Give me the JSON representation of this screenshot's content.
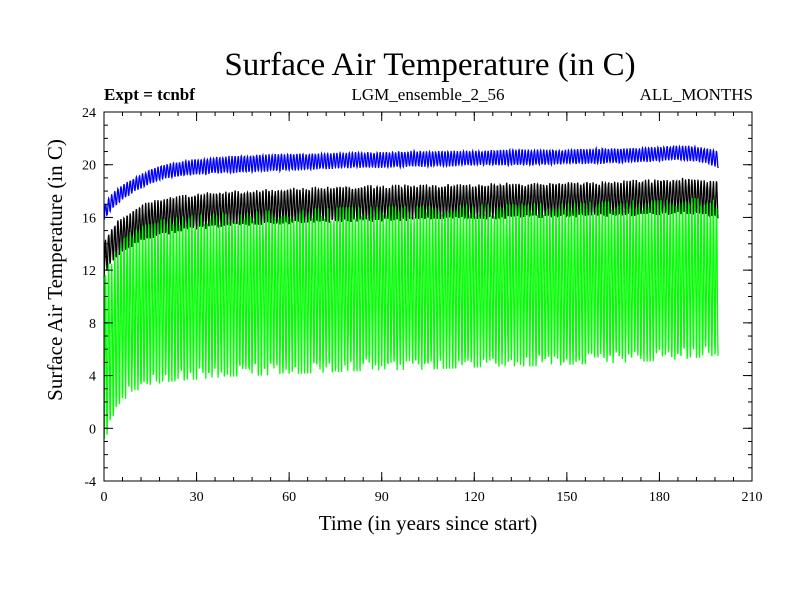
{
  "chart_data": {
    "type": "line",
    "title": "Surface Air Temperature (in C)",
    "subtitle_left": "Expt = tcnbf",
    "subtitle_center": "LGM_ensemble_2_56",
    "subtitle_right": "ALL_MONTHS",
    "xlabel": "Time (in years since start)",
    "ylabel": "Surface Air Temperature (in C)",
    "xlim": [
      0,
      210
    ],
    "ylim": [
      -4,
      24
    ],
    "x_ticks": [
      "0",
      "30",
      "60",
      "90",
      "120",
      "150",
      "180",
      "210"
    ],
    "y_ticks": [
      "-4",
      "0",
      "4",
      "8",
      "12",
      "16",
      "20",
      "24"
    ],
    "x_minor_step": 6,
    "y_minor_step": 1,
    "x_range_data": [
      0,
      199
    ],
    "series": [
      {
        "name": "blue series",
        "color": "#0000ff",
        "envelope_x": [
          0,
          2,
          5,
          10,
          15,
          20,
          30,
          40,
          50,
          60,
          70,
          80,
          90,
          100,
          110,
          120,
          130,
          140,
          150,
          160,
          170,
          180,
          185,
          190,
          195,
          199
        ],
        "envelope_low": [
          15.8,
          16.5,
          17.2,
          18.0,
          18.6,
          19.0,
          19.3,
          19.4,
          19.5,
          19.6,
          19.7,
          19.8,
          19.8,
          19.9,
          19.9,
          20.0,
          20.0,
          20.0,
          20.1,
          20.1,
          20.2,
          20.3,
          20.4,
          20.3,
          20.2,
          19.8
        ],
        "envelope_high": [
          16.8,
          17.6,
          18.3,
          19.0,
          19.6,
          20.0,
          20.4,
          20.6,
          20.7,
          20.8,
          20.8,
          20.9,
          20.9,
          21.0,
          21.0,
          21.0,
          21.1,
          21.1,
          21.1,
          21.2,
          21.2,
          21.3,
          21.4,
          21.4,
          21.2,
          21.0
        ]
      },
      {
        "name": "black series",
        "color": "#000000",
        "envelope_x": [
          0,
          2,
          5,
          10,
          15,
          20,
          30,
          40,
          50,
          60,
          70,
          80,
          90,
          100,
          110,
          120,
          130,
          140,
          150,
          160,
          170,
          180,
          190,
          199
        ],
        "envelope_low": [
          11.5,
          12.5,
          13.2,
          14.0,
          14.5,
          14.8,
          15.2,
          15.4,
          15.5,
          15.6,
          15.7,
          15.8,
          15.8,
          15.9,
          16.0,
          16.0,
          16.0,
          16.1,
          16.1,
          16.2,
          16.2,
          16.3,
          16.4,
          16.0
        ],
        "envelope_high": [
          14.0,
          15.0,
          15.8,
          16.6,
          17.1,
          17.4,
          17.7,
          17.9,
          18.0,
          18.1,
          18.2,
          18.3,
          18.3,
          18.4,
          18.4,
          18.4,
          18.5,
          18.5,
          18.6,
          18.6,
          18.7,
          18.8,
          18.9,
          18.6
        ]
      },
      {
        "name": "green series",
        "color": "#00ff00",
        "envelope_x": [
          0,
          1,
          3,
          5,
          8,
          12,
          16,
          20,
          30,
          40,
          50,
          60,
          70,
          80,
          90,
          100,
          110,
          120,
          130,
          140,
          150,
          160,
          170,
          180,
          190,
          199
        ],
        "envelope_low": [
          -1.2,
          -0.5,
          1.0,
          2.0,
          2.8,
          3.3,
          3.6,
          3.8,
          4.0,
          4.2,
          4.3,
          4.4,
          4.5,
          4.6,
          4.7,
          4.7,
          4.8,
          4.9,
          5.0,
          5.0,
          5.1,
          5.2,
          5.3,
          5.4,
          5.6,
          5.8
        ],
        "envelope_high": [
          11.0,
          12.0,
          13.0,
          13.8,
          14.5,
          15.0,
          15.4,
          15.6,
          15.9,
          16.1,
          16.2,
          16.3,
          16.4,
          16.5,
          16.5,
          16.6,
          16.6,
          16.7,
          16.7,
          16.8,
          16.8,
          16.9,
          17.0,
          17.0,
          17.2,
          17.0
        ]
      }
    ]
  }
}
